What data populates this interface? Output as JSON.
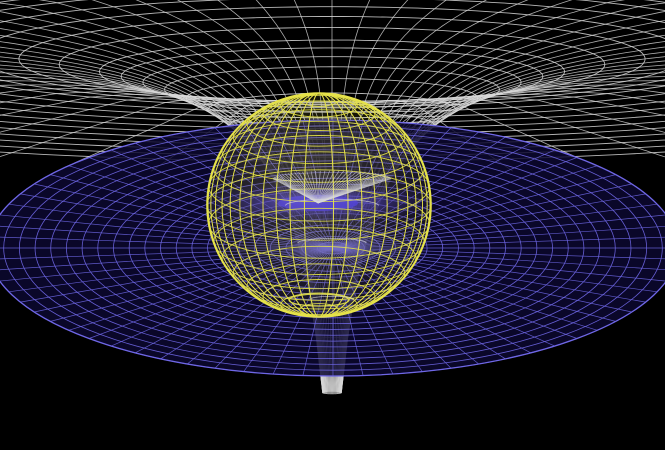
{
  "scene": {
    "background_color": "#000000",
    "curved_grid_color": "#d8d8d8",
    "flat_disc_color": "#6f67e6",
    "flat_disc_fill": "#0c0830",
    "sphere_color": "#e6e34a",
    "sphere_fill": "#7d7a1c",
    "funnel_glow_color": "#3e2dff"
  },
  "icons": {
    "curved_grid": "curved-spacetime-grid-icon",
    "flat_disc": "flat-grid-disc-icon",
    "sphere": "wireframe-sphere-icon"
  }
}
